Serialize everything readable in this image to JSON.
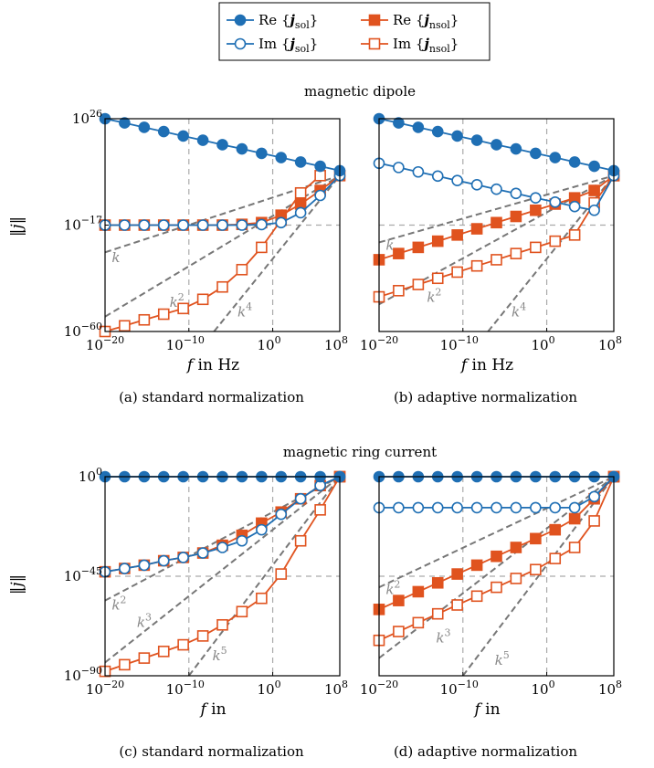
{
  "colors": {
    "blue": "#1f6fb4",
    "orange": "#e0531f",
    "refgray": "#777777",
    "gridgray": "#aaaaaa"
  },
  "legend": {
    "items": [
      {
        "key": "re_sol",
        "label": "Re {j",
        "sub": "sol",
        "suffix": "}",
        "color": "#1f6fb4",
        "marker": "circle-filled"
      },
      {
        "key": "re_nsol",
        "label": "Re {j",
        "sub": "nsol",
        "suffix": "}",
        "color": "#e0531f",
        "marker": "square-filled"
      },
      {
        "key": "im_sol",
        "label": "Im {j",
        "sub": "sol",
        "suffix": "}",
        "color": "#1f6fb4",
        "marker": "circle-open"
      },
      {
        "key": "im_nsol",
        "label": "Im {j",
        "sub": "nsol",
        "suffix": "}",
        "color": "#e0531f",
        "marker": "square-open"
      }
    ]
  },
  "section_titles": {
    "top": "magnetic dipole",
    "bottom": "magnetic ring current"
  },
  "ylabel": "||j||",
  "chart_data": [
    {
      "id": "a",
      "type": "line",
      "caption": "(a) standard normalization",
      "xlabel": "f in Hz",
      "xscale": "log",
      "yscale": "log",
      "xlim_exp": [
        -20,
        8
      ],
      "ylim_exp": [
        -60,
        26
      ],
      "xticks": [
        {
          "base": "10",
          "exp": "−20"
        },
        {
          "base": "10",
          "exp": "−10"
        },
        {
          "base": "10",
          "exp": "0"
        },
        {
          "base": "10",
          "exp": "8"
        }
      ],
      "yticks": [
        {
          "base": "10",
          "exp": "26",
          "v": 26
        },
        {
          "base": "10",
          "exp": "−17",
          "v": -17
        },
        {
          "base": "10",
          "exp": "−60",
          "v": -60
        }
      ],
      "vlines_exp": [
        -10,
        0
      ],
      "hline_exp": -17,
      "x_exp": [
        -20,
        -17.67,
        -15.33,
        -13,
        -10.67,
        -8.33,
        -6,
        -3.67,
        -1.33,
        1,
        3.33,
        5.67,
        8
      ],
      "series": [
        {
          "key": "re_sol",
          "log10_values": [
            26,
            24.3,
            22.5,
            20.8,
            19,
            17.3,
            15.5,
            13.8,
            12,
            10.3,
            8.5,
            6.8,
            5
          ]
        },
        {
          "key": "im_sol",
          "log10_values": [
            -17,
            -17,
            -17,
            -17,
            -17,
            -17,
            -17,
            -17,
            -16.8,
            -16,
            -12,
            -5,
            3
          ]
        },
        {
          "key": "re_nsol",
          "log10_values": [
            -17,
            -17,
            -17,
            -17,
            -17,
            -17,
            -17,
            -16.7,
            -16,
            -13,
            -8.5,
            -3,
            3
          ]
        },
        {
          "key": "im_nsol",
          "log10_values": [
            -60,
            -57.7,
            -55.3,
            -53,
            -50.7,
            -47,
            -42,
            -35,
            -26,
            -15,
            -4,
            3
          ]
        }
      ],
      "series_x_override": {
        "im_nsol": [
          -20,
          -17.67,
          -15.33,
          -13,
          -10.67,
          -8.33,
          -6,
          -3.67,
          -1.33,
          1,
          3.33,
          5.67
        ]
      },
      "ref_lines": [
        {
          "label": "k",
          "exp": "",
          "from": [
            -20,
            -28
          ],
          "to": [
            8,
            3
          ]
        },
        {
          "label": "k",
          "exp": "2",
          "from": [
            -20,
            -54
          ],
          "to": [
            8,
            3
          ]
        },
        {
          "label": "k",
          "exp": "4",
          "from": [
            -7,
            -60
          ],
          "to": [
            8,
            3
          ]
        }
      ],
      "annot_pos": [
        [
          -19.2,
          -32
        ],
        [
          -12.3,
          -50
        ],
        [
          -4.2,
          -54
        ]
      ]
    },
    {
      "id": "b",
      "type": "line",
      "caption": "(b) adaptive normalization",
      "xlabel": "f in Hz",
      "xscale": "log",
      "yscale": "log",
      "xlim_exp": [
        -20,
        8
      ],
      "ylim_exp": [
        -60,
        26
      ],
      "xticks": [
        {
          "base": "10",
          "exp": "−20"
        },
        {
          "base": "10",
          "exp": "−10"
        },
        {
          "base": "10",
          "exp": "0"
        },
        {
          "base": "10",
          "exp": "8"
        }
      ],
      "yticks": [],
      "vlines_exp": [
        -10,
        0
      ],
      "hline_exp": -17,
      "x_exp": [
        -20,
        -17.67,
        -15.33,
        -13,
        -10.67,
        -8.33,
        -6,
        -3.67,
        -1.33,
        1,
        3.33,
        5.67,
        8
      ],
      "series": [
        {
          "key": "re_sol",
          "log10_values": [
            26,
            24.3,
            22.5,
            20.8,
            19,
            17.3,
            15.5,
            13.8,
            12,
            10.3,
            8.5,
            6.8,
            5
          ]
        },
        {
          "key": "im_sol",
          "log10_values": [
            8,
            6.3,
            4.5,
            2.8,
            1,
            -0.7,
            -2.5,
            -4.2,
            -6,
            -7.7,
            -9.5,
            -11,
            3
          ]
        },
        {
          "key": "re_nsol",
          "log10_values": [
            -31,
            -28.5,
            -26,
            -23.5,
            -21,
            -18.5,
            -16,
            -13.5,
            -11,
            -8.5,
            -6,
            -3,
            3
          ]
        },
        {
          "key": "im_nsol",
          "log10_values": [
            -46,
            -43.5,
            -41,
            -38.5,
            -36,
            -33.5,
            -31,
            -28.5,
            -26,
            -23.5,
            -21,
            -8,
            3
          ]
        }
      ],
      "ref_lines": [
        {
          "label": "k",
          "exp": "",
          "from": [
            -20,
            -24
          ],
          "to": [
            8,
            3
          ]
        },
        {
          "label": "k",
          "exp": "2",
          "from": [
            -20,
            -49
          ],
          "to": [
            8,
            3
          ]
        },
        {
          "label": "k",
          "exp": "4",
          "from": [
            -7,
            -60
          ],
          "to": [
            8,
            3
          ]
        }
      ],
      "annot_pos": [
        [
          -19.2,
          -27
        ],
        [
          -14.3,
          -48
        ],
        [
          -4.2,
          -54
        ]
      ]
    },
    {
      "id": "c",
      "type": "line",
      "caption": "(c) standard normalization",
      "xlabel": "f in",
      "xscale": "log",
      "yscale": "log",
      "xlim_exp": [
        -20,
        8
      ],
      "ylim_exp": [
        -90,
        0
      ],
      "xticks": [
        {
          "base": "10",
          "exp": "−20"
        },
        {
          "base": "10",
          "exp": "−10"
        },
        {
          "base": "10",
          "exp": "0"
        },
        {
          "base": "10",
          "exp": "8"
        }
      ],
      "yticks": [
        {
          "base": "10",
          "exp": "0",
          "v": 0
        },
        {
          "base": "10",
          "exp": "−45",
          "v": -45
        },
        {
          "base": "10",
          "exp": "−90",
          "v": -90
        }
      ],
      "vlines_exp": [
        -10,
        0
      ],
      "hline_exp": -45,
      "x_exp": [
        -20,
        -17.67,
        -15.33,
        -13,
        -10.67,
        -8.33,
        -6,
        -3.67,
        -1.33,
        1,
        3.33,
        5.67,
        8
      ],
      "series": [
        {
          "key": "re_sol",
          "log10_values": [
            0,
            0,
            0,
            0,
            0,
            0,
            0,
            0,
            0,
            0,
            0,
            0,
            0
          ]
        },
        {
          "key": "im_sol",
          "log10_values": [
            -43,
            -41.5,
            -40,
            -38,
            -36.5,
            -34.5,
            -32,
            -29,
            -24,
            -17,
            -10,
            -4,
            0
          ]
        },
        {
          "key": "re_nsol",
          "log10_values": [
            -43,
            -41.5,
            -40,
            -38,
            -36.5,
            -34.5,
            -31,
            -26.5,
            -21,
            -16,
            -10,
            -4,
            0
          ]
        },
        {
          "key": "im_nsol",
          "log10_values": [
            -88,
            -85,
            -82,
            -79,
            -76,
            -72,
            -67,
            -61,
            -55,
            -44,
            -29,
            -15,
            0
          ]
        }
      ],
      "ref_lines": [
        {
          "label": "k",
          "exp": "2",
          "from": [
            -20,
            -56
          ],
          "to": [
            8,
            0
          ]
        },
        {
          "label": "k",
          "exp": "3",
          "from": [
            -20,
            -84
          ],
          "to": [
            8,
            0
          ]
        },
        {
          "label": "k",
          "exp": "5",
          "from": [
            -10,
            -90
          ],
          "to": [
            8,
            0
          ]
        }
      ],
      "annot_pos": [
        [
          -19.2,
          -60
        ],
        [
          -16.2,
          -68
        ],
        [
          -7.2,
          -83
        ]
      ]
    },
    {
      "id": "d",
      "type": "line",
      "caption": "(d) adaptive normalization",
      "xlabel": "f in",
      "xscale": "log",
      "yscale": "log",
      "xlim_exp": [
        -20,
        8
      ],
      "ylim_exp": [
        -90,
        0
      ],
      "xticks": [
        {
          "base": "10",
          "exp": "−20"
        },
        {
          "base": "10",
          "exp": "−10"
        },
        {
          "base": "10",
          "exp": "0"
        },
        {
          "base": "10",
          "exp": "8"
        }
      ],
      "yticks": [],
      "vlines_exp": [
        -10,
        0
      ],
      "hline_exp": -45,
      "x_exp": [
        -20,
        -17.67,
        -15.33,
        -13,
        -10.67,
        -8.33,
        -6,
        -3.67,
        -1.33,
        1,
        3.33,
        5.67,
        8
      ],
      "series": [
        {
          "key": "re_sol",
          "log10_values": [
            0,
            0,
            0,
            0,
            0,
            0,
            0,
            0,
            0,
            0,
            0,
            0,
            0
          ]
        },
        {
          "key": "im_sol",
          "log10_values": [
            -14,
            -14,
            -14,
            -14,
            -14,
            -14,
            -14,
            -14,
            -14,
            -14,
            -14,
            -9,
            0
          ]
        },
        {
          "key": "re_nsol",
          "log10_values": [
            -60,
            -56,
            -52,
            -48,
            -44,
            -40,
            -36,
            -32,
            -28,
            -24,
            -19,
            -10,
            0
          ]
        },
        {
          "key": "im_nsol",
          "log10_values": [
            -74,
            -70,
            -66,
            -62,
            -58,
            -54,
            -50,
            -46,
            -42,
            -37,
            -32,
            -20,
            0
          ]
        }
      ],
      "ref_lines": [
        {
          "label": "k",
          "exp": "2",
          "from": [
            -20,
            -50
          ],
          "to": [
            8,
            0
          ]
        },
        {
          "label": "k",
          "exp": "3",
          "from": [
            -20,
            -82
          ],
          "to": [
            8,
            0
          ]
        },
        {
          "label": "k",
          "exp": "5",
          "from": [
            -10,
            -90
          ],
          "to": [
            8,
            0
          ]
        }
      ],
      "annot_pos": [
        [
          -19.2,
          -53
        ],
        [
          -13.2,
          -75
        ],
        [
          -6.2,
          -85
        ]
      ]
    }
  ]
}
